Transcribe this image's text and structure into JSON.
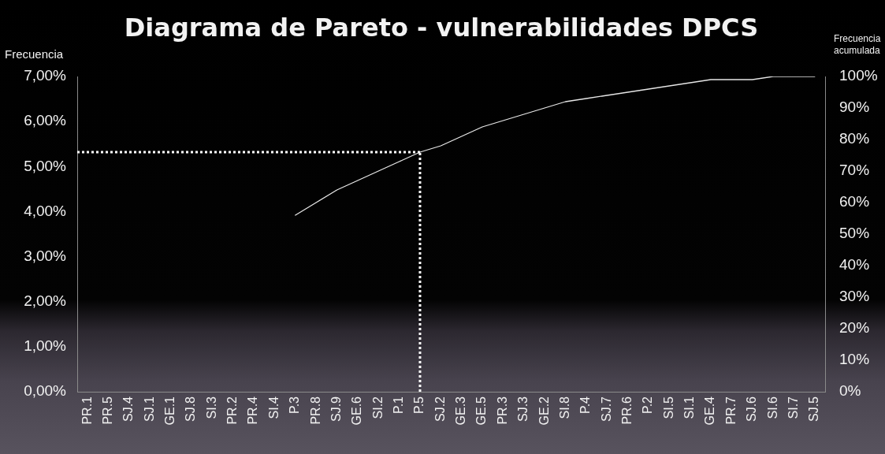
{
  "chart_data": {
    "type": "line",
    "title": "Diagrama de Pareto - vulnerabilidades DPCS",
    "ylabel": "Frecuencia",
    "y2label": "Frecuencia acumulada",
    "categories": [
      "PR.1",
      "PR.5",
      "SJ.4",
      "SJ.1",
      "GE.1",
      "SJ.8",
      "SI.3",
      "PR.2",
      "PR.4",
      "SI.4",
      "P.3",
      "PR.8",
      "SJ.9",
      "GE.6",
      "SI.2",
      "P.1",
      "P.5",
      "SJ.2",
      "GE.3",
      "GE.5",
      "PR.3",
      "SJ.3",
      "GE.2",
      "SI.8",
      "P.4",
      "SJ.7",
      "PR.6",
      "P.2",
      "SI.5",
      "SI.1",
      "GE.4",
      "PR.7",
      "SJ.6",
      "SI.6",
      "SI.7",
      "SJ.5"
    ],
    "series": [
      {
        "axis": "y2",
        "color": "#e6e6e6",
        "values": [
          null,
          null,
          null,
          null,
          null,
          null,
          null,
          null,
          null,
          null,
          56,
          60,
          64,
          67,
          70,
          73,
          76,
          78,
          81,
          84,
          86,
          88,
          90,
          92,
          93,
          94,
          95,
          96,
          97,
          98,
          99,
          99,
          99,
          100,
          100,
          100
        ]
      }
    ],
    "ylim": [
      0,
      7
    ],
    "yticks": [
      {
        "value": 0,
        "label": "0,00%"
      },
      {
        "value": 1,
        "label": "1,00%"
      },
      {
        "value": 2,
        "label": "2,00%"
      },
      {
        "value": 3,
        "label": "3,00%"
      },
      {
        "value": 4,
        "label": "4,00%"
      },
      {
        "value": 5,
        "label": "5,00%"
      },
      {
        "value": 6,
        "label": "6,00%"
      },
      {
        "value": 7,
        "label": "7,00%"
      }
    ],
    "y2lim": [
      0,
      100
    ],
    "y2ticks": [
      {
        "value": 0,
        "label": "0%"
      },
      {
        "value": 10,
        "label": "10%"
      },
      {
        "value": 20,
        "label": "20%"
      },
      {
        "value": 30,
        "label": "30%"
      },
      {
        "value": 40,
        "label": "40%"
      },
      {
        "value": 50,
        "label": "50%"
      },
      {
        "value": 60,
        "label": "60%"
      },
      {
        "value": 70,
        "label": "70%"
      },
      {
        "value": 80,
        "label": "80%"
      },
      {
        "value": 90,
        "label": "90%"
      },
      {
        "value": 100,
        "label": "100%"
      }
    ],
    "ref_lines": [
      {
        "axis": "y2",
        "value": 76,
        "color": "#ffffff",
        "line_style": "dotted"
      },
      {
        "axis": "x",
        "value": "P.5",
        "color": "#ffffff",
        "line_style": "dotted"
      }
    ]
  }
}
